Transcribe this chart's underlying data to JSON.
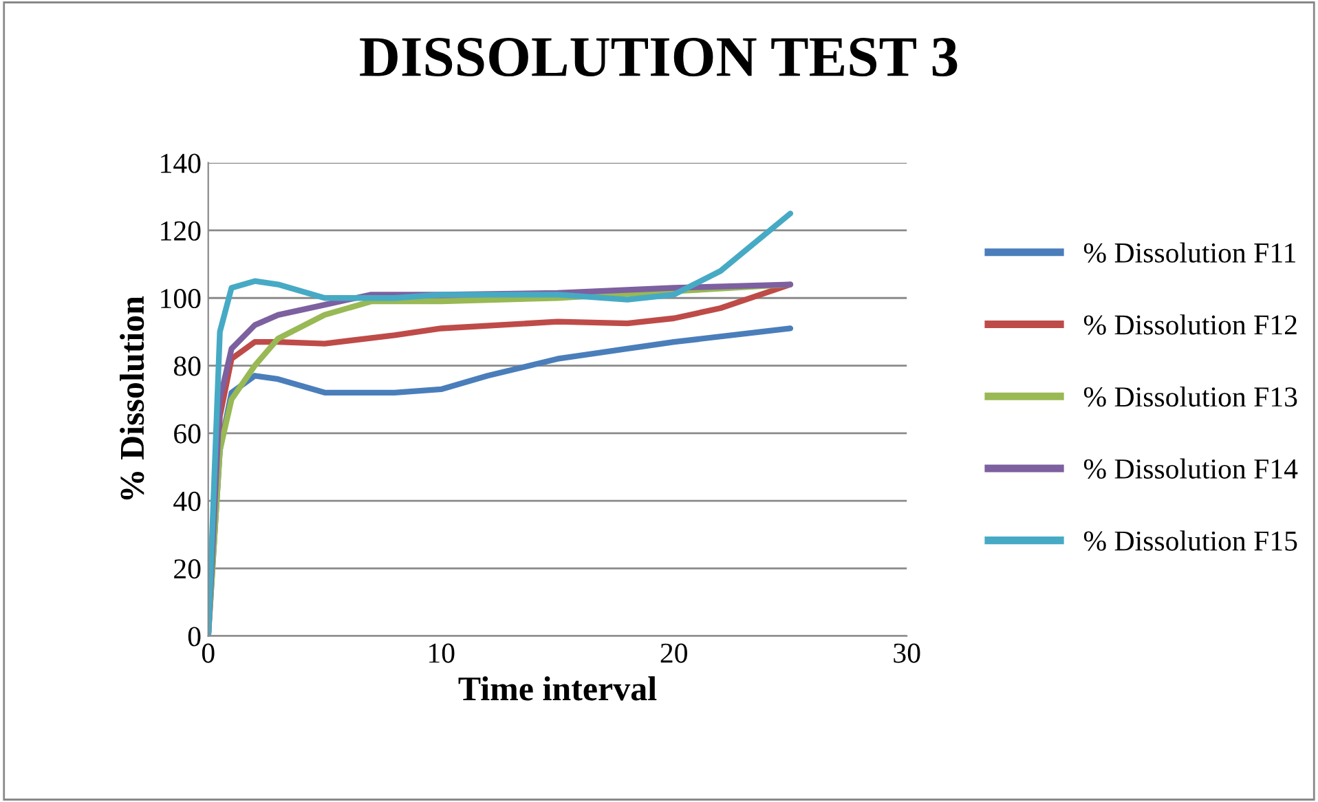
{
  "chart_data": {
    "type": "line",
    "title": "DISSOLUTION TEST 3",
    "xlabel": "Time interval",
    "ylabel": "% Dissolution",
    "xlim": [
      0,
      30
    ],
    "xticks": [
      0,
      10,
      20,
      30
    ],
    "ylim": [
      0,
      140
    ],
    "yticks": [
      0,
      20,
      40,
      60,
      80,
      100,
      120,
      140
    ],
    "grid": "y",
    "legend": "right",
    "marker": "none",
    "line_style": "solid",
    "series": [
      {
        "name": "% Dissolution F11",
        "color": "#4a7ebb",
        "x": [
          0,
          0.5,
          1,
          2,
          3,
          5,
          8,
          10,
          12,
          15,
          18,
          20,
          25
        ],
        "values": [
          0,
          55,
          72,
          77,
          76,
          72,
          72,
          73,
          77,
          82,
          85,
          87,
          91
        ]
      },
      {
        "name": "% Dissolution F12",
        "color": "#be4b48",
        "x": [
          0,
          0.5,
          1,
          2,
          3,
          5,
          8,
          10,
          15,
          18,
          20,
          22,
          25
        ],
        "values": [
          0,
          65,
          82,
          87,
          87,
          86.5,
          89,
          91,
          93,
          92.5,
          94,
          97,
          104
        ]
      },
      {
        "name": "% Dissolution F13",
        "color": "#98b954",
        "x": [
          0,
          0.5,
          1,
          2,
          3,
          5,
          7,
          10,
          15,
          20,
          25
        ],
        "values": [
          0,
          55,
          70,
          80,
          88,
          95,
          99,
          99,
          100,
          102,
          104
        ]
      },
      {
        "name": "% Dissolution F14",
        "color": "#7d60a0",
        "x": [
          0,
          0.5,
          1,
          2,
          3,
          5,
          7,
          10,
          15,
          20,
          25
        ],
        "values": [
          0,
          70,
          85,
          92,
          95,
          98,
          101,
          101,
          101.5,
          103,
          104
        ]
      },
      {
        "name": "% Dissolution F15",
        "color": "#46aac5",
        "x": [
          0,
          0.5,
          1,
          2,
          3,
          5,
          8,
          10,
          15,
          18,
          20,
          22,
          25
        ],
        "values": [
          0,
          90,
          103,
          105,
          104,
          100,
          100,
          101,
          101,
          99.5,
          101,
          108,
          125
        ]
      }
    ]
  }
}
